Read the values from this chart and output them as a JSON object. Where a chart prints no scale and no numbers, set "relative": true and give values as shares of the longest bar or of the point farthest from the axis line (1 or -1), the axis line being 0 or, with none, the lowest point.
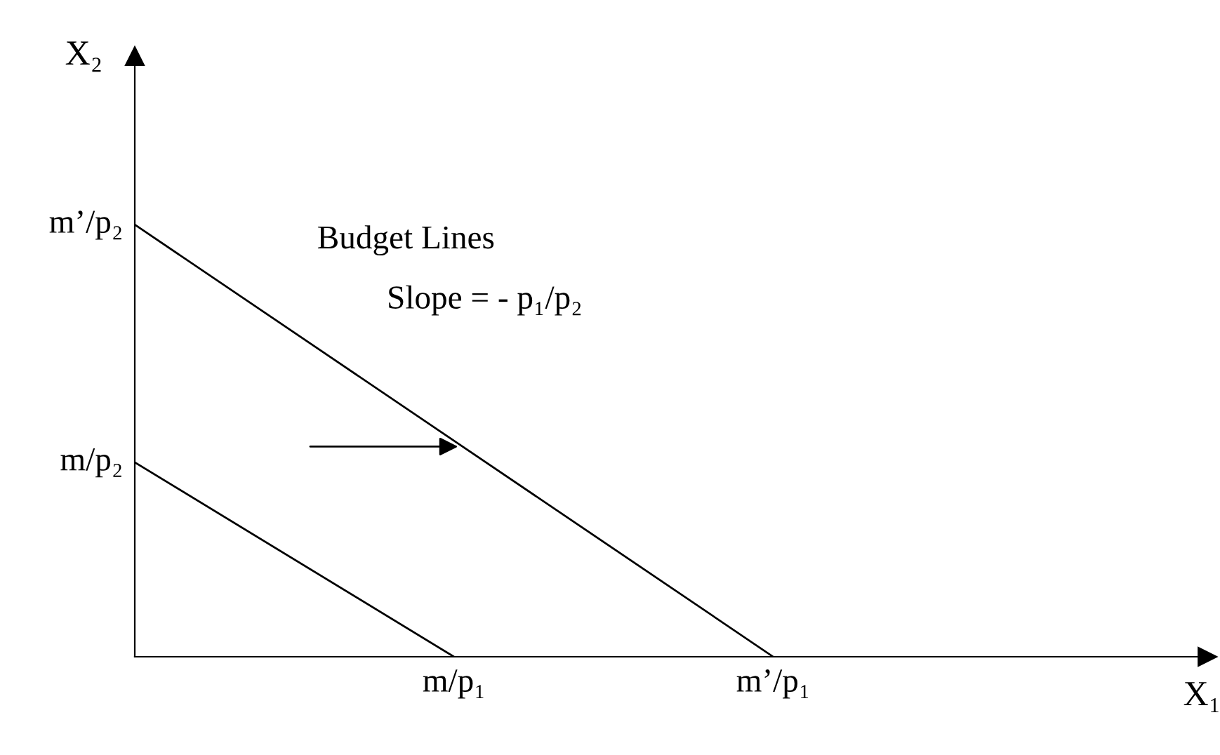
{
  "chart_data": {
    "type": "line",
    "relative": true,
    "categories": [
      null,
      "m/p₁",
      "m’/p₁"
    ],
    "series": [
      {
        "color": "#000000",
        "values": [
          0.45,
          0,
          null
        ]
      },
      {
        "color": "#000000",
        "values": [
          1,
          0.5,
          0
        ]
      }
    ],
    "annotations": [
      "Budget Lines",
      "Slope = - p₁/p₂",
      "m/p₂",
      "m’/p₂",
      "X₁",
      "X₂"
    ],
    "legend": false,
    "marker": "none",
    "line_style": "solid"
  }
}
